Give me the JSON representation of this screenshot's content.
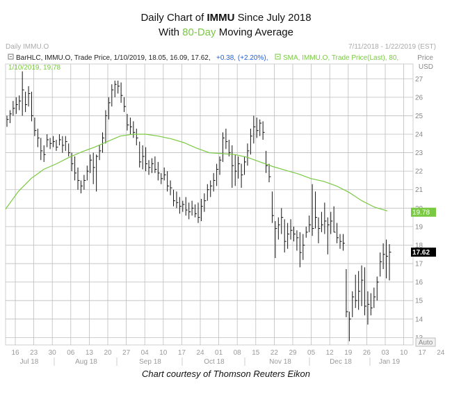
{
  "title": {
    "line1_prefix": "Daily Chart of ",
    "ticker": "IMMU",
    "line1_suffix": " Since July 2018",
    "line2_prefix": "With ",
    "ma_label": "80-Day",
    "line2_suffix": " Moving Average"
  },
  "header": {
    "panel_name": "Daily IMMU.O",
    "date_range": "7/11/2018 - 1/22/2019 (EST)",
    "bar_legend": "BarHLC, IMMU.O, Trade Price, 1/10/2019, 18.05, 16.09, 17.62,",
    "bar_change": "+0.38, (+2.20%),",
    "sma_legend": "SMA, IMMU.O, Trade Price(Last), 80,",
    "sma_value_line": "1/10/2019, 19.78",
    "price_label": "Price",
    "currency_label": "USD",
    "auto_label": "Auto"
  },
  "caption": "Chart courtesy of Thomson Reuters Eikon",
  "chart_data": {
    "type": "bar",
    "title": "Daily Chart of IMMU Since July 2018",
    "subtitle": "With 80-Day Moving Average",
    "ylabel": "Price USD",
    "ylim": [
      12.6,
      27.8
    ],
    "y_ticks": [
      13,
      14,
      15,
      16,
      17,
      18,
      19,
      20,
      21,
      22,
      23,
      24,
      25,
      26,
      27
    ],
    "x_day_labels": [
      "16",
      "23",
      "30",
      "06",
      "13",
      "20",
      "27",
      "04",
      "10",
      "17",
      "24",
      "01",
      "08",
      "15",
      "22",
      "29",
      "05",
      "12",
      "19",
      "26",
      "03",
      "10",
      "17",
      "24",
      "31",
      "07",
      "14",
      "22"
    ],
    "x_month_labels": [
      "Jul 18",
      "Aug 18",
      "Sep 18",
      "Oct 18",
      "Nov 18",
      "Dec 18",
      "Jan 19"
    ],
    "grid": true,
    "colors": {
      "bars": "#111111",
      "sma": "#7ac943",
      "grid": "#bdbdbd",
      "last_price_box": "#000000",
      "sma_box": "#7ac943"
    },
    "last_price": 17.62,
    "sma_last": 19.78,
    "series": [
      {
        "name": "BarHLC, IMMU.O, Trade Price",
        "bars_hlc": [
          [
            25.0,
            24.4,
            24.8
          ],
          [
            25.3,
            24.6,
            25.1
          ],
          [
            25.8,
            25.0,
            25.4
          ],
          [
            26.0,
            25.1,
            25.6
          ],
          [
            26.1,
            25.3,
            25.8
          ],
          [
            27.4,
            25.0,
            26.4
          ],
          [
            26.3,
            25.2,
            25.6
          ],
          [
            26.6,
            25.5,
            26.2
          ],
          [
            26.3,
            24.7,
            25.0
          ],
          [
            24.9,
            23.9,
            24.2
          ],
          [
            24.3,
            23.3,
            23.8
          ],
          [
            23.8,
            22.6,
            23.1
          ],
          [
            23.4,
            22.5,
            22.9
          ],
          [
            24.0,
            23.3,
            23.7
          ],
          [
            23.8,
            23.2,
            23.5
          ],
          [
            23.9,
            23.3,
            23.6
          ],
          [
            23.7,
            23.1,
            23.3
          ],
          [
            24.0,
            23.4,
            23.7
          ],
          [
            23.9,
            23.0,
            23.4
          ],
          [
            23.9,
            23.1,
            23.6
          ],
          [
            23.5,
            22.8,
            23.0
          ],
          [
            23.0,
            22.0,
            22.4
          ],
          [
            22.8,
            21.5,
            21.9
          ],
          [
            22.2,
            21.0,
            21.5
          ],
          [
            21.5,
            20.8,
            21.2
          ],
          [
            21.8,
            21.0,
            21.5
          ],
          [
            22.3,
            21.5,
            22.0
          ],
          [
            22.9,
            21.9,
            22.6
          ],
          [
            23.0,
            21.3,
            22.2
          ],
          [
            22.9,
            20.9,
            22.8
          ],
          [
            23.4,
            22.6,
            23.1
          ],
          [
            24.1,
            23.0,
            23.8
          ],
          [
            25.3,
            23.5,
            25.0
          ],
          [
            26.0,
            24.8,
            25.7
          ],
          [
            26.7,
            25.5,
            26.4
          ],
          [
            26.9,
            26.0,
            26.7
          ],
          [
            26.9,
            26.2,
            26.6
          ],
          [
            26.8,
            25.7,
            26.1
          ],
          [
            26.0,
            25.2,
            25.5
          ],
          [
            25.1,
            24.2,
            24.5
          ],
          [
            24.9,
            24.0,
            24.4
          ],
          [
            24.7,
            23.8,
            24.1
          ],
          [
            24.3,
            23.4,
            23.8
          ],
          [
            23.6,
            22.2,
            22.5
          ],
          [
            23.4,
            22.1,
            22.8
          ],
          [
            23.3,
            22.0,
            22.4
          ],
          [
            22.6,
            21.8,
            22.2
          ],
          [
            22.7,
            21.9,
            22.4
          ],
          [
            22.8,
            21.9,
            22.1
          ],
          [
            22.5,
            21.5,
            21.9
          ],
          [
            21.9,
            21.3,
            21.6
          ],
          [
            22.2,
            21.5,
            21.8
          ],
          [
            22.0,
            20.9,
            21.2
          ],
          [
            21.5,
            20.7,
            21.1
          ],
          [
            21.0,
            20.1,
            20.4
          ],
          [
            20.9,
            20.0,
            20.3
          ],
          [
            20.6,
            19.7,
            20.1
          ],
          [
            20.4,
            19.8,
            20.2
          ],
          [
            20.6,
            19.6,
            19.9
          ],
          [
            20.3,
            19.4,
            19.8
          ],
          [
            20.4,
            19.6,
            20.0
          ],
          [
            20.2,
            19.5,
            19.7
          ],
          [
            20.3,
            19.2,
            19.5
          ],
          [
            20.5,
            19.3,
            20.1
          ],
          [
            20.8,
            19.8,
            20.4
          ],
          [
            21.3,
            20.4,
            21.0
          ],
          [
            21.5,
            20.6,
            21.2
          ],
          [
            21.9,
            20.9,
            21.5
          ],
          [
            22.4,
            21.2,
            22.1
          ],
          [
            22.8,
            21.8,
            22.6
          ],
          [
            24.1,
            22.5,
            23.8
          ],
          [
            24.3,
            23.2,
            23.6
          ],
          [
            23.7,
            22.8,
            23.0
          ],
          [
            23.4,
            21.1,
            22.3
          ],
          [
            22.9,
            21.2,
            22.0
          ],
          [
            22.8,
            21.6,
            22.4
          ],
          [
            22.4,
            21.1,
            21.8
          ],
          [
            22.8,
            21.8,
            22.5
          ],
          [
            23.5,
            22.3,
            23.1
          ],
          [
            24.3,
            22.9,
            23.9
          ],
          [
            25.0,
            23.5,
            24.4
          ],
          [
            24.9,
            23.8,
            24.2
          ],
          [
            24.8,
            23.9,
            24.6
          ],
          [
            24.7,
            23.7,
            24.1
          ],
          [
            23.1,
            21.9,
            22.3
          ],
          [
            22.4,
            21.4,
            21.7
          ],
          [
            20.9,
            19.2,
            19.6
          ],
          [
            19.3,
            17.3,
            18.9
          ],
          [
            19.5,
            18.3,
            19.1
          ],
          [
            20.0,
            18.6,
            19.5
          ],
          [
            19.4,
            17.6,
            18.2
          ],
          [
            19.2,
            17.8,
            18.6
          ],
          [
            19.4,
            18.3,
            18.8
          ],
          [
            19.0,
            18.2,
            18.6
          ],
          [
            18.8,
            17.7,
            18.4
          ],
          [
            18.7,
            16.8,
            17.6
          ],
          [
            18.6,
            17.2,
            18.0
          ],
          [
            19.0,
            18.4,
            18.7
          ],
          [
            19.6,
            18.7,
            19.1
          ],
          [
            21.3,
            18.5,
            18.9
          ],
          [
            20.9,
            18.9,
            19.5
          ],
          [
            19.5,
            18.1,
            18.9
          ],
          [
            19.8,
            18.7,
            19.1
          ],
          [
            20.3,
            18.6,
            19.3
          ],
          [
            19.5,
            17.5,
            19.1
          ],
          [
            19.8,
            18.6,
            19.3
          ],
          [
            20.1,
            18.7,
            18.7
          ],
          [
            19.2,
            18.1,
            18.4
          ],
          [
            18.6,
            17.8,
            18.2
          ],
          [
            18.6,
            17.7,
            18.1
          ],
          [
            16.7,
            14.1,
            14.4
          ],
          [
            14.4,
            12.8,
            14.0
          ],
          [
            15.5,
            14.1,
            15.2
          ],
          [
            16.4,
            14.6,
            15.0
          ],
          [
            16.6,
            14.5,
            15.5
          ],
          [
            16.9,
            14.7,
            16.1
          ],
          [
            16.8,
            14.2,
            14.7
          ],
          [
            15.5,
            13.7,
            14.8
          ],
          [
            15.4,
            14.2,
            14.6
          ],
          [
            15.7,
            14.6,
            15.2
          ],
          [
            16.3,
            15.0,
            16.0
          ],
          [
            17.6,
            16.3,
            17.1
          ],
          [
            18.1,
            16.7,
            17.5
          ],
          [
            18.3,
            16.2,
            17.4
          ],
          [
            18.05,
            16.09,
            17.62
          ]
        ]
      },
      {
        "name": "SMA, IMMU.O, Trade Price(Last), 80",
        "values": [
          [
            0,
            19.95
          ],
          [
            10,
            20.9
          ],
          [
            20,
            21.6
          ],
          [
            30,
            22.1
          ],
          [
            40,
            22.4
          ],
          [
            50,
            22.75
          ],
          [
            60,
            23.05
          ],
          [
            70,
            23.3
          ],
          [
            80,
            23.6
          ],
          [
            90,
            23.9
          ],
          [
            100,
            24.0
          ],
          [
            110,
            24.0
          ],
          [
            120,
            23.9
          ],
          [
            130,
            23.75
          ],
          [
            140,
            23.55
          ],
          [
            150,
            23.25
          ],
          [
            160,
            23.0
          ],
          [
            170,
            22.95
          ],
          [
            180,
            22.9
          ],
          [
            190,
            22.75
          ],
          [
            200,
            22.5
          ],
          [
            210,
            22.25
          ],
          [
            220,
            22.05
          ],
          [
            230,
            21.85
          ],
          [
            240,
            21.6
          ],
          [
            250,
            21.45
          ],
          [
            260,
            21.2
          ],
          [
            270,
            20.85
          ],
          [
            280,
            20.4
          ],
          [
            290,
            20.05
          ],
          [
            300,
            19.85
          ]
        ]
      }
    ]
  }
}
